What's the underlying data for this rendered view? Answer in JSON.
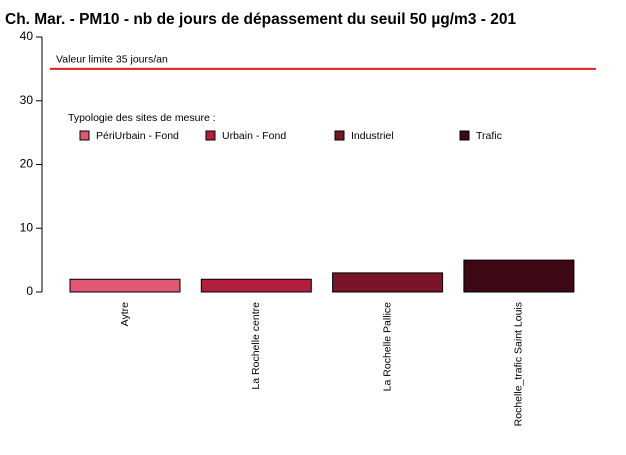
{
  "chart_data": {
    "type": "bar",
    "title": "Ch. Mar. - PM10 - nb de jours de dépassement du seuil 50 µg/m3 - 201",
    "categories": [
      "Aytre",
      "La Rochelle centre",
      "La Rochelle Pallice",
      "Rochelle_trafic Saint Louis"
    ],
    "values": [
      2,
      2,
      3,
      5
    ],
    "bar_colors": [
      "#e15874",
      "#b41e3d",
      "#7a1527",
      "#3e0814"
    ],
    "ylim": [
      0,
      40
    ],
    "yticks": [
      0,
      10,
      20,
      30,
      40
    ],
    "reference_line": {
      "value": 35,
      "label": "Valeur limite 35 jours/an",
      "color": "#e0201b"
    },
    "legend": {
      "title": "Typologie des sites de mesure :",
      "position": "top-left",
      "items": [
        {
          "name": "PériUrbain - Fond",
          "color": "#e15874"
        },
        {
          "name": "Urbain - Fond",
          "color": "#b41e3d"
        },
        {
          "name": "Industriel",
          "color": "#7a1527"
        },
        {
          "name": "Trafic",
          "color": "#3e0814"
        }
      ]
    }
  }
}
